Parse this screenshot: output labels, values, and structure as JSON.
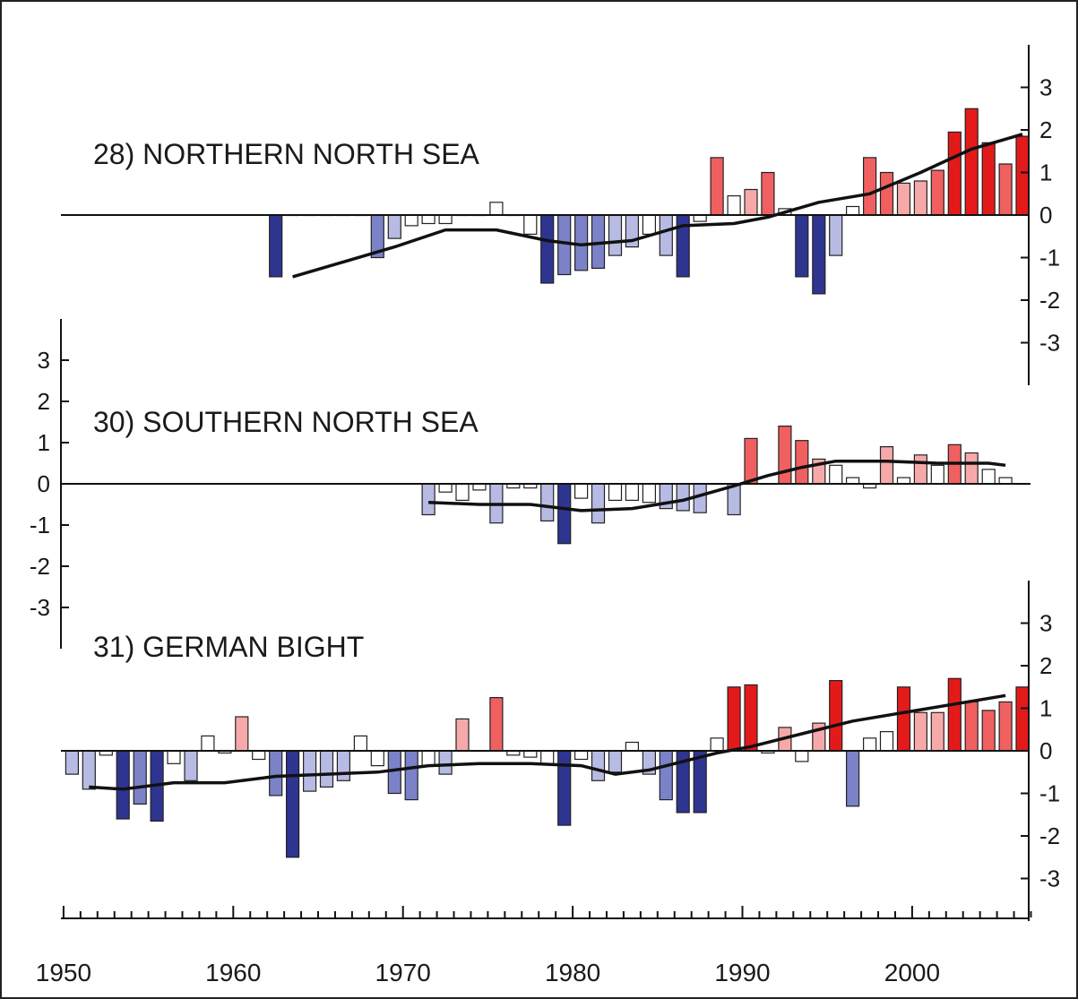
{
  "chart_data": [
    {
      "type": "bar",
      "title": "28) NORTHERN NORTH SEA",
      "y_axis_side": "right",
      "ylim": [
        -4,
        4
      ],
      "yticks": [
        "3",
        "2",
        "1",
        "0",
        "-1",
        "-2",
        "-3"
      ],
      "years": [
        1962,
        1963,
        1964,
        1965,
        1966,
        1967,
        1968,
        1969,
        1970,
        1971,
        1972,
        1973,
        1974,
        1975,
        1976,
        1977,
        1978,
        1979,
        1980,
        1981,
        1982,
        1983,
        1984,
        1985,
        1986,
        1987,
        1988,
        1989,
        1990,
        1991,
        1992,
        1993,
        1994,
        1995,
        1996,
        1997,
        1998,
        1999,
        2000,
        2001,
        2002,
        2003,
        2004,
        2005,
        2006
      ],
      "values": [
        -1.45,
        0,
        0,
        0,
        0,
        0,
        -1.0,
        -0.55,
        -0.25,
        -0.2,
        -0.2,
        0,
        0,
        0.3,
        0,
        -0.45,
        -1.6,
        -1.4,
        -1.3,
        -1.25,
        -0.95,
        -0.75,
        -0.45,
        -0.95,
        -1.45,
        -0.15,
        1.35,
        0.45,
        0.6,
        1.0,
        0.15,
        -1.45,
        -1.85,
        -0.95,
        0.2,
        1.35,
        1.0,
        0.75,
        0.8,
        1.05,
        1.95,
        2.5,
        1.7,
        1.2,
        1.85
      ],
      "trend": [
        [
          1963,
          -1.45
        ],
        [
          1966,
          -1.1
        ],
        [
          1969,
          -0.75
        ],
        [
          1972,
          -0.35
        ],
        [
          1975,
          -0.35
        ],
        [
          1978,
          -0.6
        ],
        [
          1980,
          -0.7
        ],
        [
          1983,
          -0.6
        ],
        [
          1986,
          -0.25
        ],
        [
          1989,
          -0.2
        ],
        [
          1991,
          -0.05
        ],
        [
          1994,
          0.3
        ],
        [
          1997,
          0.5
        ],
        [
          2000,
          1.0
        ],
        [
          2003,
          1.55
        ],
        [
          2006,
          1.9
        ]
      ]
    },
    {
      "type": "bar",
      "title": "30) SOUTHERN NORTH SEA",
      "y_axis_side": "left",
      "ylim": [
        -4,
        4
      ],
      "yticks": [
        "3",
        "2",
        "1",
        "0",
        "-1",
        "-2",
        "-3"
      ],
      "years": [
        1971,
        1972,
        1973,
        1974,
        1975,
        1976,
        1977,
        1978,
        1979,
        1980,
        1981,
        1982,
        1983,
        1984,
        1985,
        1986,
        1987,
        1988,
        1989,
        1990,
        1991,
        1992,
        1993,
        1994,
        1995,
        1996,
        1997,
        1998,
        1999,
        2000,
        2001,
        2002,
        2003,
        2004,
        2005,
        2006
      ],
      "values": [
        -0.75,
        -0.2,
        -0.4,
        -0.15,
        -0.95,
        -0.1,
        -0.1,
        -0.9,
        -1.45,
        -0.35,
        -0.95,
        -0.4,
        -0.4,
        -0.45,
        -0.6,
        -0.65,
        -0.7,
        0,
        -0.75,
        1.1,
        0,
        1.4,
        1.05,
        0.6,
        0.45,
        0.15,
        -0.1,
        0.9,
        0.15,
        0.7,
        0.45,
        0.95,
        0.75,
        0.35,
        0.15,
        0
      ],
      "trend": [
        [
          1971,
          -0.45
        ],
        [
          1974,
          -0.5
        ],
        [
          1977,
          -0.5
        ],
        [
          1980,
          -0.65
        ],
        [
          1983,
          -0.6
        ],
        [
          1986,
          -0.4
        ],
        [
          1989,
          -0.05
        ],
        [
          1991,
          0.2
        ],
        [
          1993,
          0.4
        ],
        [
          1995,
          0.55
        ],
        [
          1998,
          0.55
        ],
        [
          2001,
          0.5
        ],
        [
          2004,
          0.5
        ],
        [
          2005,
          0.45
        ]
      ]
    },
    {
      "type": "bar",
      "title": "31) GERMAN BIGHT",
      "y_axis_side": "right",
      "ylim": [
        -4,
        4
      ],
      "yticks": [
        "3",
        "2",
        "1",
        "0",
        "-1",
        "-2",
        "-3"
      ],
      "years": [
        1950,
        1951,
        1952,
        1953,
        1954,
        1955,
        1956,
        1957,
        1958,
        1959,
        1960,
        1961,
        1962,
        1963,
        1964,
        1965,
        1966,
        1967,
        1968,
        1969,
        1970,
        1971,
        1972,
        1973,
        1974,
        1975,
        1976,
        1977,
        1978,
        1979,
        1980,
        1981,
        1982,
        1983,
        1984,
        1985,
        1986,
        1987,
        1988,
        1989,
        1990,
        1991,
        1992,
        1993,
        1994,
        1995,
        1996,
        1997,
        1998,
        1999,
        2000,
        2001,
        2002,
        2003,
        2004,
        2005,
        2006
      ],
      "values": [
        -0.55,
        -0.9,
        -0.1,
        -1.6,
        -1.25,
        -1.65,
        -0.3,
        -0.7,
        0.35,
        -0.05,
        0.8,
        -0.2,
        -1.05,
        -2.5,
        -0.95,
        -0.85,
        -0.7,
        0.35,
        -0.35,
        -1.0,
        -1.15,
        -0.35,
        -0.55,
        0.75,
        0,
        1.25,
        -0.1,
        -0.15,
        -0.3,
        -1.75,
        -0.2,
        -0.7,
        -0.5,
        0.2,
        -0.55,
        -1.15,
        -1.45,
        -1.45,
        0.3,
        1.5,
        1.55,
        -0.05,
        0.55,
        -0.25,
        0.65,
        1.65,
        -1.3,
        0.3,
        0.45,
        1.5,
        0.9,
        0.9,
        1.7,
        1.15,
        0.95,
        1.15,
        1.5
      ],
      "trend": [
        [
          1951,
          -0.85
        ],
        [
          1953,
          -0.9
        ],
        [
          1956,
          -0.75
        ],
        [
          1959,
          -0.75
        ],
        [
          1962,
          -0.6
        ],
        [
          1965,
          -0.55
        ],
        [
          1968,
          -0.5
        ],
        [
          1971,
          -0.35
        ],
        [
          1974,
          -0.3
        ],
        [
          1977,
          -0.3
        ],
        [
          1980,
          -0.35
        ],
        [
          1982,
          -0.55
        ],
        [
          1984,
          -0.45
        ],
        [
          1986,
          -0.25
        ],
        [
          1988,
          -0.05
        ],
        [
          1990,
          0.1
        ],
        [
          1993,
          0.4
        ],
        [
          1996,
          0.7
        ],
        [
          1999,
          0.9
        ],
        [
          2002,
          1.1
        ],
        [
          2005,
          1.3
        ]
      ]
    }
  ],
  "x_axis": {
    "min": 1950,
    "max": 2007,
    "tick_labels": [
      "1950",
      "1960",
      "1970",
      "1980",
      "1990",
      "2000"
    ]
  },
  "colors": {
    "strong_warm": "#e41a1a",
    "medium_warm": "#f06060",
    "light_warm": "#f7a9a9",
    "neutral": "#ffffff",
    "light_cool": "#b7bbe3",
    "medium_cool": "#7b82c7",
    "strong_cool": "#2e3591",
    "line": "#111111"
  }
}
